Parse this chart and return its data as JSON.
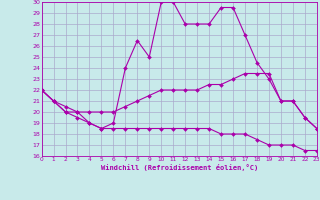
{
  "xlabel": "Windchill (Refroidissement éolien,°C)",
  "bg_color": "#c8eaea",
  "line_color": "#aa00aa",
  "grid_color": "#aaaacc",
  "xlim": [
    0,
    23
  ],
  "ylim": [
    16,
    30
  ],
  "xticks": [
    0,
    1,
    2,
    3,
    4,
    5,
    6,
    7,
    8,
    9,
    10,
    11,
    12,
    13,
    14,
    15,
    16,
    17,
    18,
    19,
    20,
    21,
    22,
    23
  ],
  "yticks": [
    16,
    17,
    18,
    19,
    20,
    21,
    22,
    23,
    24,
    25,
    26,
    27,
    28,
    29,
    30
  ],
  "line1_x": [
    0,
    1,
    2,
    3,
    4,
    5,
    6,
    7,
    8,
    9,
    10,
    11,
    12,
    13,
    14,
    15,
    16,
    17,
    18,
    19,
    20,
    21,
    22,
    23
  ],
  "line1_y": [
    22,
    21,
    20.5,
    20,
    19,
    18.5,
    19,
    24,
    26.5,
    25,
    30,
    30,
    28,
    28,
    28,
    29.5,
    29.5,
    27,
    24.5,
    23,
    21,
    21,
    19.5,
    18.5
  ],
  "line2_x": [
    0,
    1,
    2,
    3,
    4,
    5,
    6,
    7,
    8,
    9,
    10,
    11,
    12,
    13,
    14,
    15,
    16,
    17,
    18,
    19,
    20,
    21,
    22,
    23
  ],
  "line2_y": [
    22,
    21,
    20,
    20,
    20,
    20,
    20,
    20.5,
    21,
    21.5,
    22,
    22,
    22,
    22,
    22.5,
    22.5,
    23,
    23.5,
    23.5,
    23.5,
    21,
    21,
    19.5,
    18.5
  ],
  "line3_x": [
    0,
    1,
    2,
    3,
    4,
    5,
    6,
    7,
    8,
    9,
    10,
    11,
    12,
    13,
    14,
    15,
    16,
    17,
    18,
    19,
    20,
    21,
    22,
    23
  ],
  "line3_y": [
    22,
    21,
    20,
    19.5,
    19,
    18.5,
    18.5,
    18.5,
    18.5,
    18.5,
    18.5,
    18.5,
    18.5,
    18.5,
    18.5,
    18,
    18,
    18,
    17.5,
    17,
    17,
    17,
    16.5,
    16.5
  ]
}
